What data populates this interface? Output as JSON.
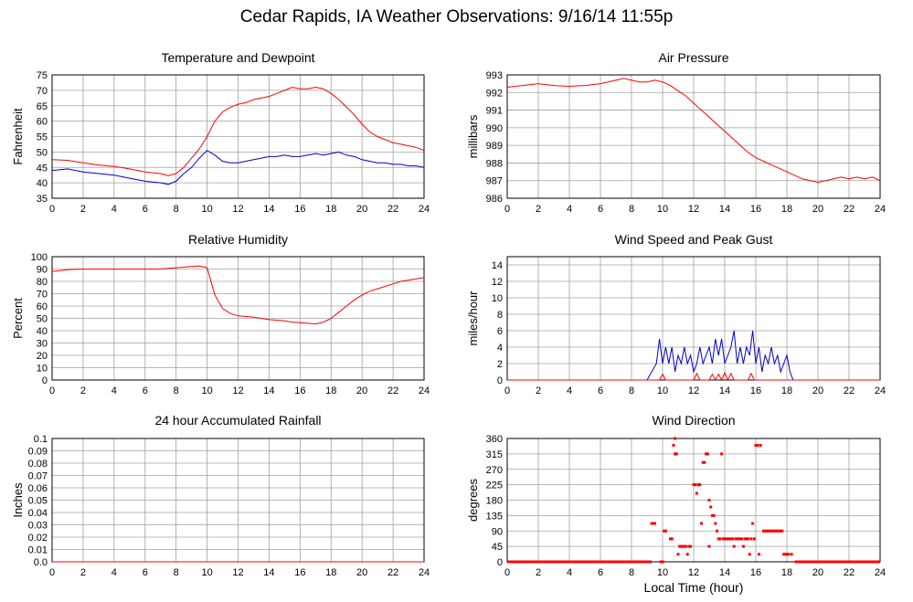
{
  "title": "Cedar Rapids, IA Weather Observations: 9/16/14 11:55p",
  "xlabel_bottom": "Local Time (hour)",
  "colors": {
    "red": "#ff0000",
    "blue": "#0000cc",
    "grid": "#a0a0a0"
  },
  "chart_data": [
    {
      "id": "temp",
      "type": "line",
      "title": "Temperature and Dewpoint",
      "ylabel": "Fahrenheit",
      "xlim": [
        0,
        24
      ],
      "ylim": [
        35,
        75
      ],
      "xticks": [
        0,
        2,
        4,
        6,
        8,
        10,
        12,
        14,
        16,
        18,
        20,
        22,
        24
      ],
      "yticks": [
        35,
        40,
        45,
        50,
        55,
        60,
        65,
        70,
        75
      ],
      "series": [
        {
          "name": "",
          "color": "#ff0000",
          "x": [
            0,
            1,
            2,
            3,
            4,
            5,
            6,
            7,
            7.5,
            8,
            8.5,
            9,
            9.5,
            10,
            10.5,
            11,
            11.5,
            12,
            12.5,
            13,
            13.5,
            14,
            14.5,
            15,
            15.5,
            16,
            16.5,
            17,
            17.5,
            18,
            18.5,
            19,
            19.5,
            20,
            20.5,
            21,
            21.5,
            22,
            22.5,
            23,
            23.5,
            24
          ],
          "y": [
            47.5,
            47.3,
            46.5,
            45.8,
            45.3,
            44.5,
            43.5,
            43,
            42.3,
            43,
            45,
            48,
            51,
            55,
            60,
            63,
            64.5,
            65.5,
            66,
            67,
            67.5,
            68,
            69,
            70,
            71,
            70.5,
            70.5,
            71,
            70.5,
            69,
            67,
            64.5,
            62,
            59,
            56.5,
            55,
            54,
            53,
            52.5,
            52,
            51.5,
            50.5
          ]
        },
        {
          "name": "",
          "color": "#0000cc",
          "x": [
            0,
            1,
            2,
            3,
            4,
            5,
            6,
            7,
            7.5,
            8,
            8.5,
            9,
            9.5,
            10,
            10.5,
            11,
            11.5,
            12,
            12.5,
            13,
            13.5,
            14,
            14.5,
            15,
            15.5,
            16,
            16.5,
            17,
            17.5,
            18,
            18.5,
            19,
            19.5,
            20,
            20.5,
            21,
            21.5,
            22,
            22.5,
            23,
            23.5,
            24
          ],
          "y": [
            44,
            44.5,
            43.5,
            43,
            42.5,
            41.5,
            40.5,
            40,
            39.5,
            40.5,
            43,
            45,
            48,
            50.5,
            49,
            47,
            46.5,
            46.5,
            47,
            47.5,
            48,
            48.5,
            48.5,
            49,
            48.5,
            48.5,
            49,
            49.5,
            49,
            49.5,
            50,
            49,
            48.5,
            47.5,
            47,
            46.5,
            46.5,
            46,
            46,
            45.5,
            45.5,
            45
          ]
        }
      ]
    },
    {
      "id": "pres",
      "type": "line",
      "title": "Air Pressure",
      "ylabel": "millibars",
      "xlim": [
        0,
        24
      ],
      "ylim": [
        986,
        993
      ],
      "xticks": [
        0,
        2,
        4,
        6,
        8,
        10,
        12,
        14,
        16,
        18,
        20,
        22,
        24
      ],
      "yticks": [
        986,
        987,
        988,
        989,
        990,
        991,
        992,
        993
      ],
      "series": [
        {
          "name": "",
          "color": "#ff0000",
          "x": [
            0,
            1,
            2,
            3,
            4,
            5,
            6,
            7,
            7.5,
            8,
            8.5,
            9,
            9.5,
            10,
            10.5,
            11,
            11.5,
            12,
            12.5,
            13,
            13.5,
            14,
            14.5,
            15,
            15.5,
            16,
            16.5,
            17,
            17.5,
            18,
            18.5,
            19,
            19.5,
            20,
            20.5,
            21,
            21.5,
            22,
            22.5,
            23,
            23.5,
            24
          ],
          "y": [
            992.3,
            992.4,
            992.5,
            992.4,
            992.35,
            992.4,
            992.5,
            992.7,
            992.8,
            992.7,
            992.6,
            992.6,
            992.7,
            992.6,
            992.4,
            992.1,
            991.8,
            991.4,
            991,
            990.6,
            990.2,
            989.8,
            989.4,
            989,
            988.6,
            988.3,
            988.1,
            987.9,
            987.7,
            987.5,
            987.3,
            987.1,
            987,
            986.9,
            987,
            987.1,
            987.2,
            987.1,
            987.2,
            987.1,
            987.2,
            987
          ]
        }
      ]
    },
    {
      "id": "rh",
      "type": "line",
      "title": "Relative Humidity",
      "ylabel": "Percent",
      "xlim": [
        0,
        24
      ],
      "ylim": [
        0,
        100
      ],
      "xticks": [
        0,
        2,
        4,
        6,
        8,
        10,
        12,
        14,
        16,
        18,
        20,
        22,
        24
      ],
      "yticks": [
        0,
        10,
        20,
        30,
        40,
        50,
        60,
        70,
        80,
        90,
        100
      ],
      "series": [
        {
          "name": "",
          "color": "#ff0000",
          "x": [
            0,
            1,
            2,
            3,
            4,
            5,
            6,
            7,
            7.5,
            8,
            8.5,
            9,
            9.5,
            10,
            10.5,
            11,
            11.5,
            12,
            12.5,
            13,
            13.5,
            14,
            14.5,
            15,
            15.5,
            16,
            16.5,
            17,
            17.5,
            18,
            18.5,
            19,
            19.5,
            20,
            20.5,
            21,
            21.5,
            22,
            22.5,
            23,
            23.5,
            24
          ],
          "y": [
            88,
            89.5,
            90,
            90,
            90,
            90,
            90,
            90,
            90.5,
            91,
            91.5,
            92,
            92.5,
            91,
            69,
            58,
            54,
            52,
            51.5,
            51,
            50,
            49,
            48.5,
            48,
            47,
            46.5,
            46,
            45.5,
            47,
            50,
            55,
            60,
            65,
            69,
            72,
            74,
            76,
            78,
            80,
            81,
            82,
            83
          ]
        }
      ]
    },
    {
      "id": "wind",
      "type": "line",
      "title": "Wind Speed and Peak Gust",
      "ylabel": "miles/hour",
      "xlim": [
        0,
        24
      ],
      "ylim": [
        0,
        15
      ],
      "xticks": [
        0,
        2,
        4,
        6,
        8,
        10,
        12,
        14,
        16,
        18,
        20,
        22,
        24
      ],
      "yticks": [
        0,
        2,
        4,
        6,
        8,
        10,
        12,
        14
      ],
      "series": [
        {
          "name": "",
          "color": "#0000cc",
          "x": [
            0,
            9,
            9.3,
            9.6,
            9.8,
            10,
            10.2,
            10.4,
            10.6,
            10.8,
            11,
            11.2,
            11.4,
            11.6,
            11.8,
            12,
            12.2,
            12.4,
            12.6,
            12.8,
            13,
            13.2,
            13.4,
            13.6,
            13.8,
            14,
            14.2,
            14.4,
            14.6,
            14.8,
            15,
            15.2,
            15.4,
            15.6,
            15.8,
            16,
            16.2,
            16.4,
            16.6,
            16.8,
            17,
            17.2,
            17.4,
            17.6,
            17.8,
            18,
            18.2,
            18.4,
            24
          ],
          "y": [
            0,
            0,
            1,
            2,
            5,
            2,
            4,
            2,
            4,
            1,
            3,
            2,
            4,
            2,
            3,
            1,
            2,
            4,
            2,
            3,
            4,
            2,
            5,
            3,
            5,
            2,
            3,
            4,
            6,
            2,
            4,
            2,
            4,
            3,
            6,
            2,
            4,
            1,
            3,
            2,
            4,
            2,
            3,
            1,
            2,
            3,
            1,
            0,
            0
          ]
        },
        {
          "name": "",
          "color": "#ff0000",
          "x": [
            0,
            9.8,
            10,
            10.2,
            10.4,
            12,
            12.2,
            12.4,
            13,
            13.2,
            13.4,
            13.6,
            13.8,
            14,
            14.2,
            14.4,
            14.6,
            15.5,
            15.7,
            15.9,
            16.1,
            24
          ],
          "y": [
            0,
            0,
            0.7,
            0,
            0,
            0,
            0.8,
            0,
            0,
            0.7,
            0,
            0.7,
            0,
            0.9,
            0,
            0.8,
            0,
            0,
            0.8,
            0,
            0,
            0
          ]
        }
      ]
    },
    {
      "id": "rain",
      "type": "line",
      "title": "24 hour Accumulated Rainfall",
      "ylabel": "Inches",
      "xlim": [
        0,
        24
      ],
      "ylim": [
        0,
        0.1
      ],
      "xticks": [
        0,
        2,
        4,
        6,
        8,
        10,
        12,
        14,
        16,
        18,
        20,
        22,
        24
      ],
      "yticks": [
        0,
        0.01,
        0.02,
        0.03,
        0.04,
        0.05,
        0.06,
        0.07,
        0.08,
        0.09,
        0.1
      ],
      "ytick_labels": [
        "0.0",
        "0.01",
        "0.02",
        "0.03",
        "0.04",
        "0.05",
        "0.06",
        "0.07",
        "0.08",
        "0.09",
        "0.1"
      ],
      "series": [
        {
          "name": "",
          "color": "#ff0000",
          "x": [
            0,
            24
          ],
          "y": [
            0,
            0
          ]
        }
      ]
    },
    {
      "id": "wdir",
      "type": "scatter",
      "title": "Wind Direction",
      "ylabel": "degrees",
      "xlabel": "Local Time (hour)",
      "xlim": [
        0,
        24
      ],
      "ylim": [
        0,
        360
      ],
      "xticks": [
        0,
        2,
        4,
        6,
        8,
        10,
        12,
        14,
        16,
        18,
        20,
        22,
        24
      ],
      "yticks": [
        0,
        45,
        90,
        135,
        180,
        225,
        270,
        315,
        360
      ],
      "series": [
        {
          "name": "",
          "color": "#ff0000",
          "zero_spans": [
            [
              0,
              9.3
            ],
            [
              9.8,
              10.1
            ],
            [
              18.5,
              24
            ]
          ],
          "points": [
            [
              9.3,
              112
            ],
            [
              9.4,
              112
            ],
            [
              9.5,
              112
            ],
            [
              10.1,
              90
            ],
            [
              10.2,
              90
            ],
            [
              10.5,
              67
            ],
            [
              10.6,
              67
            ],
            [
              10.7,
              340
            ],
            [
              10.8,
              360
            ],
            [
              10.8,
              315
            ],
            [
              10.9,
              315
            ],
            [
              11.0,
              22
            ],
            [
              11.1,
              45
            ],
            [
              11.2,
              45
            ],
            [
              11.3,
              45
            ],
            [
              11.4,
              45
            ],
            [
              11.5,
              45
            ],
            [
              11.6,
              22
            ],
            [
              11.7,
              45
            ],
            [
              11.8,
              45
            ],
            [
              12.0,
              225
            ],
            [
              12.1,
              225
            ],
            [
              12.2,
              200
            ],
            [
              12.3,
              225
            ],
            [
              12.4,
              225
            ],
            [
              12.5,
              112
            ],
            [
              12.6,
              290
            ],
            [
              12.7,
              290
            ],
            [
              12.8,
              315
            ],
            [
              12.9,
              315
            ],
            [
              13.0,
              180
            ],
            [
              13.0,
              45
            ],
            [
              13.1,
              160
            ],
            [
              13.2,
              135
            ],
            [
              13.3,
              135
            ],
            [
              13.4,
              112
            ],
            [
              13.5,
              90
            ],
            [
              13.6,
              67
            ],
            [
              13.7,
              67
            ],
            [
              13.8,
              315
            ],
            [
              13.9,
              67
            ],
            [
              14.0,
              67
            ],
            [
              14.1,
              67
            ],
            [
              14.2,
              67
            ],
            [
              14.3,
              67
            ],
            [
              14.4,
              67
            ],
            [
              14.5,
              67
            ],
            [
              14.6,
              45
            ],
            [
              14.7,
              67
            ],
            [
              14.8,
              67
            ],
            [
              14.9,
              67
            ],
            [
              15.0,
              67
            ],
            [
              15.1,
              67
            ],
            [
              15.2,
              45
            ],
            [
              15.3,
              67
            ],
            [
              15.4,
              67
            ],
            [
              15.5,
              67
            ],
            [
              15.6,
              22
            ],
            [
              15.7,
              67
            ],
            [
              15.8,
              112
            ],
            [
              15.9,
              67
            ],
            [
              16.0,
              340
            ],
            [
              16.1,
              340
            ],
            [
              16.2,
              22
            ],
            [
              16.3,
              340
            ],
            [
              16.5,
              90
            ],
            [
              16.6,
              90
            ],
            [
              16.7,
              90
            ],
            [
              16.8,
              90
            ],
            [
              16.9,
              90
            ],
            [
              17.0,
              90
            ],
            [
              17.1,
              90
            ],
            [
              17.2,
              90
            ],
            [
              17.3,
              90
            ],
            [
              17.4,
              90
            ],
            [
              17.5,
              90
            ],
            [
              17.6,
              90
            ],
            [
              17.7,
              90
            ],
            [
              17.8,
              22
            ],
            [
              17.9,
              22
            ],
            [
              18.0,
              22
            ],
            [
              18.1,
              22
            ],
            [
              18.3,
              22
            ]
          ]
        }
      ]
    }
  ]
}
